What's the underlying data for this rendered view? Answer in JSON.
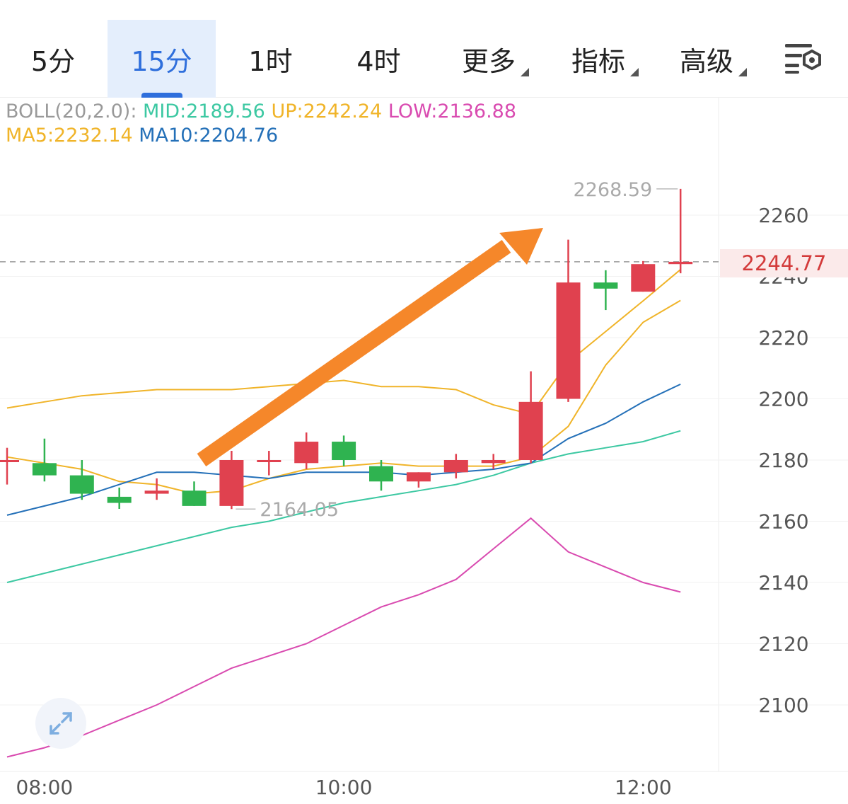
{
  "tabs": [
    {
      "label": "5分",
      "active": false,
      "dropdown": false
    },
    {
      "label": "15分",
      "active": true,
      "dropdown": false
    },
    {
      "label": "1时",
      "active": false,
      "dropdown": false
    },
    {
      "label": "4时",
      "active": false,
      "dropdown": false
    },
    {
      "label": "更多",
      "active": false,
      "dropdown": true
    },
    {
      "label": "指标",
      "active": false,
      "dropdown": true
    },
    {
      "label": "高级",
      "active": false,
      "dropdown": true
    }
  ],
  "settings_icon": "chart-settings-icon",
  "expand_icon": "expand-arrows-icon",
  "indicators": {
    "boll_label": "BOLL(20,2.0):",
    "mid": "MID:2189.56",
    "up": "UP:2242.24",
    "low": "LOW:2136.88",
    "ma5": "MA5:2232.14",
    "ma10": "MA10:2204.76"
  },
  "colors": {
    "up_candle": "#e0414f",
    "down_candle": "#2fb350",
    "mid": "#3cc8a2",
    "up": "#f0b429",
    "low": "#d94bb0",
    "ma5": "#f0b429",
    "ma10": "#2470b8",
    "trend_arrow": "#f5872a",
    "boll_label": "#999999"
  },
  "current_price": "2244.77",
  "chart_data": {
    "type": "candlestick",
    "y_ticks": [
      2260,
      2240,
      2220,
      2200,
      2180,
      2160,
      2140,
      2120,
      2100
    ],
    "y_tick_labels": [
      "2260",
      "2240",
      "2220",
      "2200",
      "2180",
      "2160",
      "2140",
      "2120",
      "2100"
    ],
    "ylim": [
      2082,
      2280
    ],
    "x_tick_labels": [
      "08:00",
      "10:00",
      "12:00"
    ],
    "x_tick_index": [
      1,
      9,
      17
    ],
    "high_label": "2268.59",
    "low_label": "2164.05",
    "current_price": 2244.77,
    "candles": [
      {
        "o": 2180,
        "h": 2184,
        "l": 2172,
        "c": 2180
      },
      {
        "o": 2179,
        "h": 2187,
        "l": 2173,
        "c": 2175
      },
      {
        "o": 2175,
        "h": 2180,
        "l": 2167,
        "c": 2169
      },
      {
        "o": 2168,
        "h": 2171,
        "l": 2164.05,
        "c": 2166
      },
      {
        "o": 2169,
        "h": 2174,
        "l": 2167,
        "c": 2170
      },
      {
        "o": 2170,
        "h": 2173,
        "l": 2165,
        "c": 2165
      },
      {
        "o": 2165,
        "h": 2183,
        "l": 2164,
        "c": 2180
      },
      {
        "o": 2180,
        "h": 2183,
        "l": 2175,
        "c": 2180
      },
      {
        "o": 2179,
        "h": 2189,
        "l": 2177,
        "c": 2186
      },
      {
        "o": 2186,
        "h": 2188,
        "l": 2178,
        "c": 2180
      },
      {
        "o": 2178,
        "h": 2180,
        "l": 2170,
        "c": 2173
      },
      {
        "o": 2173,
        "h": 2176,
        "l": 2171,
        "c": 2176
      },
      {
        "o": 2176,
        "h": 2182,
        "l": 2174,
        "c": 2180
      },
      {
        "o": 2179,
        "h": 2182,
        "l": 2177,
        "c": 2180
      },
      {
        "o": 2180,
        "h": 2209,
        "l": 2179,
        "c": 2199
      },
      {
        "o": 2200,
        "h": 2252,
        "l": 2199,
        "c": 2238
      },
      {
        "o": 2238,
        "h": 2242,
        "l": 2229,
        "c": 2236
      },
      {
        "o": 2235,
        "h": 2245,
        "l": 2235,
        "c": 2244
      },
      {
        "o": 2244,
        "h": 2268.59,
        "l": 2241,
        "c": 2244.77
      }
    ],
    "series": [
      {
        "name": "MID",
        "values": [
          2140,
          2143,
          2146,
          2149,
          2152,
          2155,
          2158,
          2160,
          2163,
          2166,
          2168,
          2170,
          2172,
          2175,
          2179,
          2182,
          2184,
          2186,
          2189.56
        ]
      },
      {
        "name": "UP",
        "values": [
          2197,
          2199,
          2201,
          2202,
          2203,
          2203,
          2203,
          2204,
          2205,
          2206,
          2204,
          2204,
          2203,
          2198,
          2195,
          2212,
          2222,
          2232,
          2242.24
        ]
      },
      {
        "name": "LOW",
        "values": [
          2083,
          2086,
          2090,
          2095,
          2100,
          2106,
          2112,
          2116,
          2120,
          2126,
          2132,
          2136,
          2141,
          2151,
          2161,
          2150,
          2145,
          2140,
          2136.88
        ]
      },
      {
        "name": "MA5",
        "values": [
          2181,
          2179,
          2177,
          2173,
          2172,
          2169,
          2170,
          2174,
          2177,
          2178,
          2179,
          2178,
          2178,
          2178,
          2181,
          2191,
          2211,
          2225,
          2232.14
        ]
      },
      {
        "name": "MA10",
        "values": [
          2162,
          2165,
          2168,
          2172,
          2176,
          2176,
          2175,
          2174,
          2176,
          2176,
          2176,
          2175,
          2176,
          2177,
          2179,
          2187,
          2192,
          2199,
          2204.76
        ]
      }
    ]
  }
}
